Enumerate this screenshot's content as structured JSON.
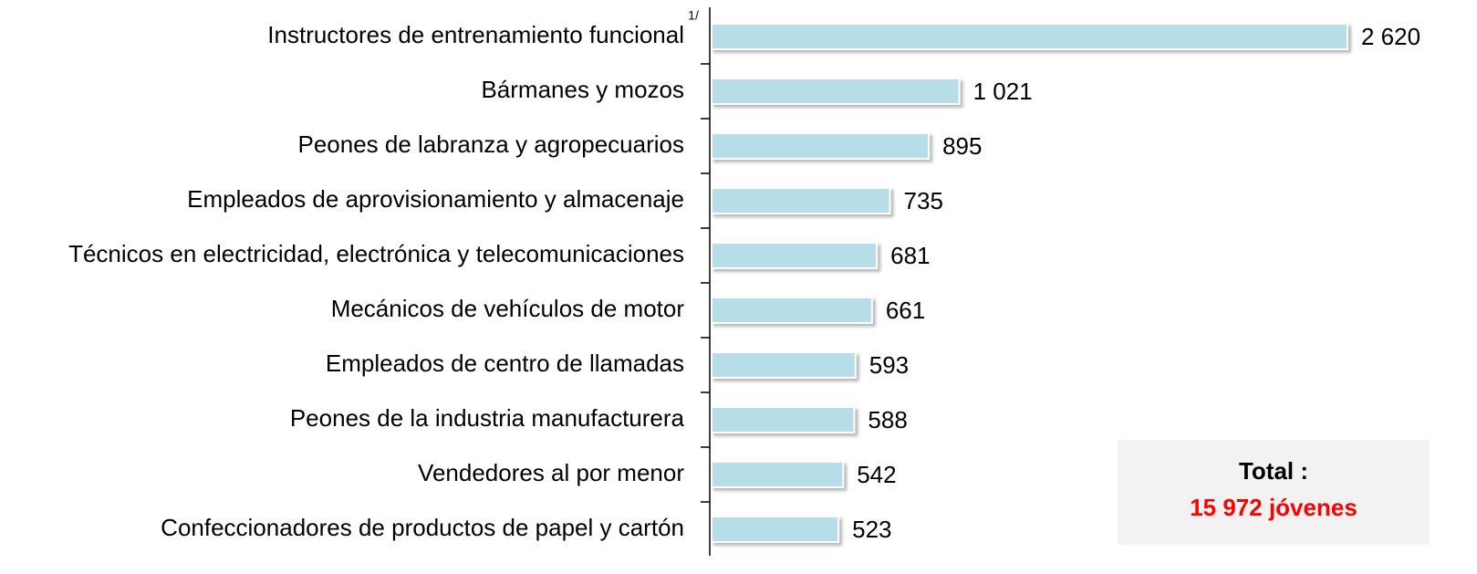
{
  "chart_data": {
    "type": "hbar",
    "categories": [
      "Instructores de entrenamiento funcional",
      "Bármanes y mozos",
      "Peones de labranza y agropecuarios",
      "Empleados de aprovisionamiento y almacenaje",
      "Técnicos en electricidad, electrónica y telecomunicaciones",
      "Mecánicos de vehículos de motor",
      "Empleados de centro de llamadas",
      "Peones de la industria manufacturera",
      "Vendedores al por menor",
      "Confeccionadores de productos de papel y cartón"
    ],
    "values": [
      2620,
      1021,
      895,
      735,
      681,
      661,
      593,
      588,
      542,
      523
    ],
    "value_labels": [
      "2 620",
      "1 021",
      "895",
      "735",
      "681",
      "661",
      "593",
      "588",
      "542",
      "523"
    ],
    "color": "#b7dde8",
    "footnote": "1/",
    "annotations": [
      "Total :",
      "15 972 jóvenes"
    ]
  }
}
